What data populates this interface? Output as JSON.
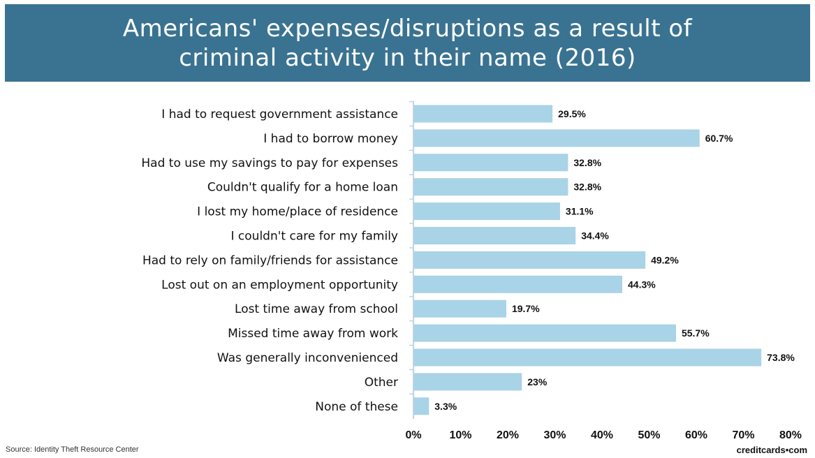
{
  "header": {
    "title_line1": "Americans' expenses/disruptions as a result of",
    "title_line2": "criminal activity in their name (2016)"
  },
  "footer": {
    "source": "Source: Identity Theft Resource Center",
    "brand": "creditcards•com"
  },
  "colors": {
    "header_bg": "#3a7391",
    "bar": "#a9d3e6",
    "axis": "#bcd4e0"
  },
  "chart_data": {
    "type": "bar",
    "orientation": "horizontal",
    "title": "Americans' expenses/disruptions as a result of criminal activity in their name (2016)",
    "categories": [
      "I had to request government assistance",
      "I had to borrow money",
      "Had to use my savings to pay for expenses",
      "Couldn't qualify for a home loan",
      "I lost my home/place of residence",
      "I couldn't care for my family",
      "Had to rely on family/friends for assistance",
      "Lost out on an employment opportunity",
      "Lost time away from school",
      "Missed time away from work",
      "Was generally inconvenienced",
      "Other",
      "None of these"
    ],
    "values": [
      29.5,
      60.7,
      32.8,
      32.8,
      31.1,
      34.4,
      49.2,
      44.3,
      19.7,
      55.7,
      73.8,
      23,
      3.3
    ],
    "value_labels": [
      "29.5%",
      "60.7%",
      "32.8%",
      "32.8%",
      "31.1%",
      "34.4%",
      "49.2%",
      "44.3%",
      "19.7%",
      "55.7%",
      "73.8%",
      "23%",
      "3.3%"
    ],
    "xlim": [
      0,
      80
    ],
    "xticks": [
      0,
      10,
      20,
      30,
      40,
      50,
      60,
      70,
      80
    ],
    "xtick_labels": [
      "0%",
      "10%",
      "20%",
      "30%",
      "40%",
      "50%",
      "60%",
      "70%",
      "80%"
    ],
    "grid": false,
    "legend": "none"
  }
}
